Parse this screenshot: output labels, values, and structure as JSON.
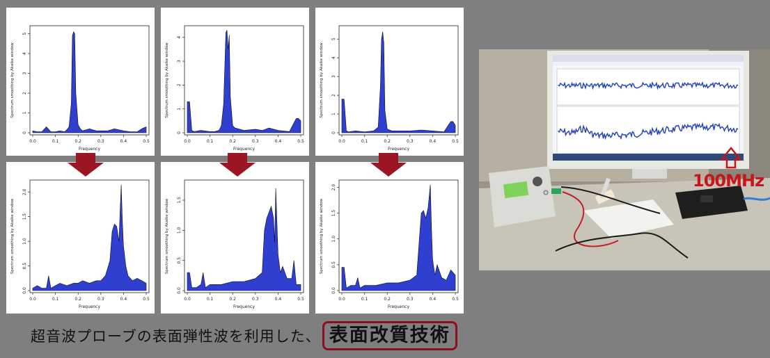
{
  "slide": {
    "caption_text": "超音波プローブの表面弾性波を利用した、",
    "caption_highlight": "表面改質技術",
    "accent_color": "#8b0f1c",
    "background": "#7f7f7f"
  },
  "plots": {
    "ylabel": "Spectrum smoothing by Akaike window",
    "xlabel": "Frequency",
    "x_ticks": [
      "0.0",
      "0.1",
      "0.2",
      "0.3",
      "0.4",
      "0.5"
    ],
    "fill_color": "#2f3fd0"
  },
  "chart_data": [
    {
      "type": "area",
      "x_range": [
        0,
        0.5
      ],
      "ylim": [
        0,
        5.3
      ],
      "y_ticks": [
        "0",
        "1",
        "2",
        "3",
        "4",
        "5"
      ],
      "x": [
        0.0,
        0.02,
        0.04,
        0.06,
        0.08,
        0.1,
        0.12,
        0.14,
        0.15,
        0.16,
        0.17,
        0.175,
        0.18,
        0.185,
        0.19,
        0.2,
        0.21,
        0.22,
        0.25,
        0.28,
        0.3,
        0.33,
        0.36,
        0.4,
        0.43,
        0.46,
        0.48,
        0.5
      ],
      "y": [
        0.1,
        0.05,
        0.05,
        0.3,
        0.05,
        0.05,
        0.1,
        0.05,
        0.15,
        0.3,
        1.5,
        4.9,
        5.1,
        5.0,
        2.0,
        0.4,
        0.2,
        0.1,
        0.2,
        0.1,
        0.1,
        0.1,
        0.2,
        0.1,
        0.05,
        0.05,
        0.2,
        0.3
      ]
    },
    {
      "type": "area",
      "x_range": [
        0,
        0.5
      ],
      "ylim": [
        0,
        4.4
      ],
      "y_ticks": [
        "0",
        "1",
        "2",
        "3",
        "4"
      ],
      "x": [
        0.0,
        0.01,
        0.02,
        0.03,
        0.06,
        0.1,
        0.12,
        0.14,
        0.15,
        0.16,
        0.17,
        0.175,
        0.18,
        0.185,
        0.19,
        0.2,
        0.21,
        0.25,
        0.3,
        0.33,
        0.36,
        0.4,
        0.45,
        0.48,
        0.49,
        0.5
      ],
      "y": [
        1.3,
        1.3,
        0.1,
        0.05,
        0.1,
        0.05,
        0.05,
        0.1,
        0.3,
        1.2,
        4.2,
        4.3,
        3.5,
        4.1,
        1.5,
        0.3,
        0.2,
        0.1,
        0.15,
        0.1,
        0.2,
        0.1,
        0.05,
        0.6,
        0.6,
        0.5
      ]
    },
    {
      "type": "area",
      "x_range": [
        0,
        0.5
      ],
      "ylim": [
        0,
        5.6
      ],
      "y_ticks": [
        "0",
        "1",
        "2",
        "3",
        "4",
        "5"
      ],
      "x": [
        0.0,
        0.01,
        0.02,
        0.03,
        0.06,
        0.1,
        0.14,
        0.16,
        0.17,
        0.175,
        0.18,
        0.185,
        0.19,
        0.2,
        0.22,
        0.25,
        0.3,
        0.35,
        0.4,
        0.45,
        0.48,
        0.49,
        0.5
      ],
      "y": [
        1.8,
        1.8,
        0.1,
        0.05,
        0.1,
        0.05,
        0.1,
        0.3,
        2.5,
        5.0,
        5.4,
        4.8,
        1.2,
        0.2,
        0.1,
        0.1,
        0.1,
        0.15,
        0.1,
        0.05,
        0.6,
        0.6,
        0.4
      ]
    },
    {
      "type": "area",
      "x_range": [
        0,
        0.5
      ],
      "ylim": [
        0,
        2.2
      ],
      "y_ticks": [
        "0.0",
        "0.5",
        "1.0",
        "1.5",
        "2.0"
      ],
      "x": [
        0.0,
        0.02,
        0.04,
        0.06,
        0.07,
        0.08,
        0.1,
        0.12,
        0.15,
        0.18,
        0.2,
        0.22,
        0.25,
        0.28,
        0.3,
        0.32,
        0.34,
        0.35,
        0.36,
        0.37,
        0.38,
        0.385,
        0.39,
        0.395,
        0.4,
        0.41,
        0.42,
        0.44,
        0.46,
        0.48,
        0.5
      ],
      "y": [
        0.05,
        0.1,
        0.05,
        0.05,
        0.3,
        0.05,
        0.1,
        0.15,
        0.1,
        0.15,
        0.15,
        0.2,
        0.15,
        0.2,
        0.2,
        0.3,
        0.6,
        1.2,
        1.35,
        1.3,
        1.0,
        1.6,
        2.15,
        1.4,
        0.9,
        0.5,
        0.3,
        0.2,
        0.25,
        0.2,
        0.15
      ]
    },
    {
      "type": "area",
      "x_range": [
        0,
        0.5
      ],
      "ylim": [
        0,
        1.8
      ],
      "y_ticks": [
        "0.0",
        "0.5",
        "1.0",
        "1.5"
      ],
      "x": [
        0.0,
        0.01,
        0.02,
        0.04,
        0.06,
        0.07,
        0.08,
        0.1,
        0.15,
        0.2,
        0.25,
        0.3,
        0.33,
        0.34,
        0.35,
        0.36,
        0.37,
        0.38,
        0.385,
        0.39,
        0.4,
        0.41,
        0.42,
        0.44,
        0.46,
        0.47,
        0.48,
        0.5
      ],
      "y": [
        0.3,
        0.3,
        0.05,
        0.05,
        0.1,
        0.3,
        0.05,
        0.1,
        0.1,
        0.15,
        0.15,
        0.2,
        0.3,
        1.0,
        1.2,
        1.3,
        1.4,
        1.2,
        0.8,
        1.7,
        0.6,
        0.3,
        0.4,
        0.2,
        0.2,
        0.5,
        0.1,
        0.1
      ]
    },
    {
      "type": "area",
      "x_range": [
        0,
        0.5
      ],
      "ylim": [
        0,
        2.1
      ],
      "y_ticks": [
        "0.0",
        "0.5",
        "1.0",
        "1.5",
        "2.0"
      ],
      "x": [
        0.0,
        0.01,
        0.02,
        0.04,
        0.06,
        0.07,
        0.08,
        0.1,
        0.15,
        0.2,
        0.25,
        0.3,
        0.33,
        0.34,
        0.35,
        0.36,
        0.37,
        0.38,
        0.39,
        0.395,
        0.4,
        0.41,
        0.42,
        0.44,
        0.46,
        0.48,
        0.5
      ],
      "y": [
        0.45,
        0.45,
        0.05,
        0.1,
        0.1,
        0.25,
        0.05,
        0.1,
        0.1,
        0.15,
        0.15,
        0.2,
        0.3,
        0.9,
        1.5,
        1.55,
        1.4,
        1.6,
        2.05,
        1.2,
        0.6,
        0.3,
        0.5,
        0.25,
        0.2,
        0.4,
        0.3
      ]
    }
  ],
  "photo": {
    "frequency_label": "100MHz"
  }
}
